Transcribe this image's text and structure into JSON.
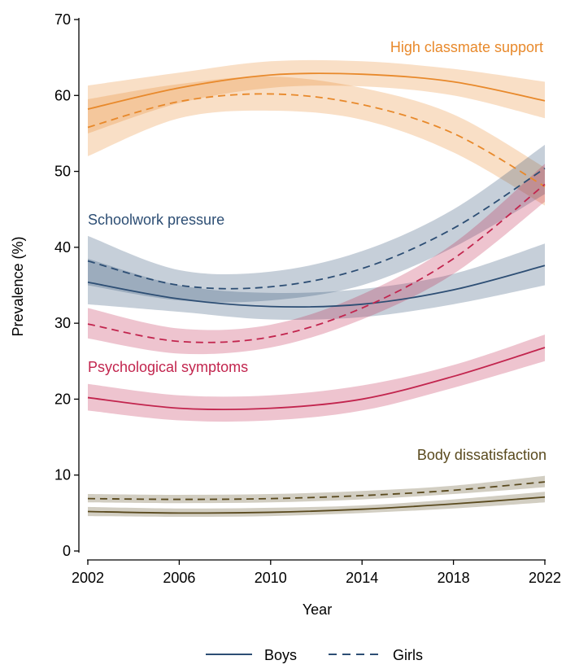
{
  "chart_data": {
    "type": "line",
    "xlabel": "Year",
    "ylabel": "Prevalence (%)",
    "x": [
      2002,
      2006,
      2010,
      2014,
      2018,
      2022
    ],
    "xlim": [
      2002,
      2022
    ],
    "ylim": [
      0,
      70
    ],
    "xticks": [
      2002,
      2006,
      2010,
      2014,
      2018,
      2022
    ],
    "yticks": [
      0,
      10,
      20,
      30,
      40,
      50,
      60,
      70
    ],
    "grid": false,
    "legend": {
      "placement": "bottom",
      "items": [
        {
          "label": "Boys",
          "style": "solid"
        },
        {
          "label": "Girls",
          "style": "dashed"
        }
      ]
    },
    "groups": [
      {
        "label": "High classmate support",
        "color": "#E8892B",
        "series": [
          {
            "sex": "Boys",
            "style": "solid",
            "values": [
              58.2,
              61.0,
              62.7,
              62.8,
              61.8,
              59.3
            ],
            "lower": [
              55.0,
              59.0,
              61.0,
              61.2,
              60.0,
              57.0
            ],
            "upper": [
              61.3,
              63.0,
              64.5,
              64.5,
              63.5,
              61.8
            ]
          },
          {
            "sex": "Girls",
            "style": "dashed",
            "values": [
              55.8,
              59.2,
              60.2,
              58.8,
              55.0,
              48.0
            ],
            "lower": [
              52.0,
              57.0,
              58.0,
              56.8,
              52.5,
              45.5
            ],
            "upper": [
              59.5,
              61.5,
              62.5,
              61.0,
              57.5,
              50.5
            ]
          }
        ]
      },
      {
        "label": "Schoolwork pressure",
        "color": "#2D4E74",
        "series": [
          {
            "sex": "Boys",
            "style": "solid",
            "values": [
              35.4,
              33.2,
              32.2,
              32.5,
              34.4,
              37.6
            ],
            "lower": [
              32.5,
              31.5,
              30.5,
              30.8,
              32.5,
              35.0
            ],
            "upper": [
              38.5,
              35.0,
              34.0,
              34.5,
              36.5,
              40.5
            ]
          },
          {
            "sex": "Girls",
            "style": "dashed",
            "values": [
              38.2,
              35.0,
              34.8,
              37.2,
              42.5,
              50.4
            ],
            "lower": [
              35.0,
              33.0,
              33.0,
              35.0,
              40.0,
              47.0
            ],
            "upper": [
              41.5,
              37.0,
              36.8,
              39.5,
              45.0,
              53.5
            ]
          }
        ]
      },
      {
        "label": "Psychological symptoms",
        "color": "#C2254E",
        "series": [
          {
            "sex": "Boys",
            "style": "solid",
            "values": [
              20.2,
              18.8,
              18.8,
              20.0,
              23.0,
              26.8
            ],
            "lower": [
              18.5,
              17.2,
              17.2,
              18.5,
              21.5,
              25.0
            ],
            "upper": [
              22.0,
              20.5,
              20.5,
              21.8,
              24.5,
              28.5
            ]
          },
          {
            "sex": "Girls",
            "style": "dashed",
            "values": [
              29.9,
              27.6,
              28.2,
              32.0,
              38.5,
              48.3
            ],
            "lower": [
              28.0,
              26.0,
              26.8,
              30.5,
              36.5,
              46.0
            ],
            "upper": [
              32.0,
              29.3,
              29.8,
              33.8,
              40.5,
              51.0
            ]
          }
        ]
      },
      {
        "label": "Body dissatisfaction",
        "color": "#5A4A1E",
        "series": [
          {
            "sex": "Boys",
            "style": "solid",
            "values": [
              5.2,
              5.0,
              5.1,
              5.5,
              6.2,
              7.1
            ],
            "lower": [
              4.6,
              4.5,
              4.6,
              5.0,
              5.6,
              6.4
            ],
            "upper": [
              5.8,
              5.6,
              5.7,
              6.0,
              6.8,
              7.8
            ]
          },
          {
            "sex": "Girls",
            "style": "dashed",
            "values": [
              6.9,
              6.8,
              6.9,
              7.3,
              8.0,
              9.1
            ],
            "lower": [
              6.4,
              6.3,
              6.4,
              6.8,
              7.5,
              8.4
            ],
            "upper": [
              7.5,
              7.4,
              7.5,
              7.9,
              8.6,
              9.9
            ]
          }
        ]
      }
    ]
  }
}
